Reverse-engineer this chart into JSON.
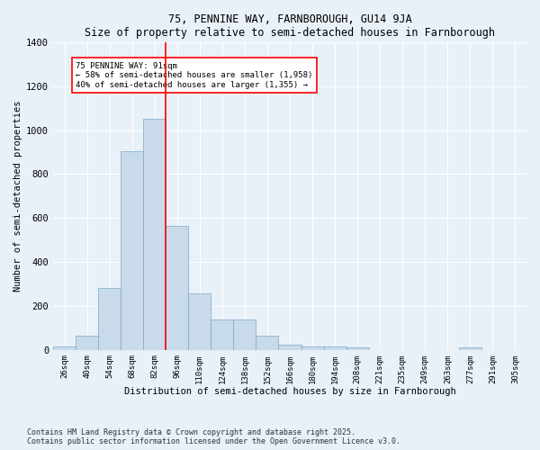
{
  "title1": "75, PENNINE WAY, FARNBOROUGH, GU14 9JA",
  "title2": "Size of property relative to semi-detached houses in Farnborough",
  "xlabel": "Distribution of semi-detached houses by size in Farnborough",
  "ylabel": "Number of semi-detached properties",
  "bar_labels": [
    "26sqm",
    "40sqm",
    "54sqm",
    "68sqm",
    "82sqm",
    "96sqm",
    "110sqm",
    "124sqm",
    "138sqm",
    "152sqm",
    "166sqm",
    "180sqm",
    "194sqm",
    "208sqm",
    "221sqm",
    "235sqm",
    "249sqm",
    "263sqm",
    "277sqm",
    "291sqm",
    "305sqm"
  ],
  "bar_values": [
    15,
    65,
    280,
    905,
    1050,
    565,
    255,
    140,
    140,
    65,
    25,
    15,
    15,
    10,
    0,
    0,
    0,
    0,
    10,
    0,
    0
  ],
  "bar_color": "#c9daea",
  "bar_edge_color": "#7baac8",
  "background_color": "#e8f0f8",
  "vline_color": "red",
  "vline_x_index": 4.5,
  "annotation_text": "75 PENNINE WAY: 91sqm\n← 58% of semi-detached houses are smaller (1,958)\n40% of semi-detached houses are larger (1,355) →",
  "annotation_box_color": "white",
  "annotation_box_edge": "red",
  "ylim": [
    0,
    1400
  ],
  "yticks": [
    0,
    200,
    400,
    600,
    800,
    1000,
    1200,
    1400
  ],
  "footnote1": "Contains HM Land Registry data © Crown copyright and database right 2025.",
  "footnote2": "Contains public sector information licensed under the Open Government Licence v3.0."
}
